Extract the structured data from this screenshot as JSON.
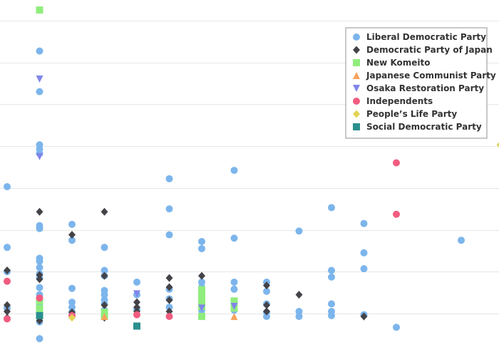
{
  "chart_data": {
    "type": "scatter",
    "title": "",
    "xlabel": "",
    "ylabel": "",
    "xlim": [
      0,
      15.5
    ],
    "ylim": [
      -0.5,
      7.5
    ],
    "gridlines_y": [
      0,
      1,
      2,
      3,
      4,
      5,
      6,
      7
    ],
    "legend_position": "top-right",
    "series": [
      {
        "name": "Liberal Democratic Party",
        "marker": "circle",
        "color": "#7cb5ec",
        "points": [
          {
            "x": 0,
            "y": 3.03
          },
          {
            "x": 0,
            "y": 1.58
          },
          {
            "x": 0,
            "y": 1.0
          },
          {
            "x": 0,
            "y": 0.13
          },
          {
            "x": 1,
            "y": 6.27
          },
          {
            "x": 1,
            "y": 5.3
          },
          {
            "x": 1,
            "y": 4.03
          },
          {
            "x": 1,
            "y": 3.93
          },
          {
            "x": 1,
            "y": 3.82
          },
          {
            "x": 1,
            "y": 2.1
          },
          {
            "x": 1,
            "y": 2.03
          },
          {
            "x": 1,
            "y": 1.32
          },
          {
            "x": 1,
            "y": 1.25
          },
          {
            "x": 1,
            "y": 1.1
          },
          {
            "x": 1,
            "y": 0.95
          },
          {
            "x": 1,
            "y": 0.85
          },
          {
            "x": 1,
            "y": 0.62
          },
          {
            "x": 1,
            "y": 0.45
          },
          {
            "x": 1,
            "y": 0.25
          },
          {
            "x": 1,
            "y": 0.1
          },
          {
            "x": 1,
            "y": -0.2
          },
          {
            "x": 1,
            "y": -0.6
          },
          {
            "x": 2,
            "y": 2.13
          },
          {
            "x": 2,
            "y": 1.75
          },
          {
            "x": 2,
            "y": 0.6
          },
          {
            "x": 2,
            "y": 0.27
          },
          {
            "x": 2,
            "y": 0.15
          },
          {
            "x": 2,
            "y": 0.03
          },
          {
            "x": 3,
            "y": 1.58
          },
          {
            "x": 3,
            "y": 1.03
          },
          {
            "x": 3,
            "y": 0.9
          },
          {
            "x": 3,
            "y": 0.55
          },
          {
            "x": 3,
            "y": 0.45
          },
          {
            "x": 3,
            "y": 0.33
          },
          {
            "x": 3,
            "y": 0.23
          },
          {
            "x": 3,
            "y": 0.08
          },
          {
            "x": 4,
            "y": 0.75
          },
          {
            "x": 4,
            "y": 0.45
          },
          {
            "x": 4,
            "y": 0.1
          },
          {
            "x": 5,
            "y": 3.22
          },
          {
            "x": 5,
            "y": 2.5
          },
          {
            "x": 5,
            "y": 1.88
          },
          {
            "x": 5,
            "y": 0.58
          },
          {
            "x": 5,
            "y": 0.35
          },
          {
            "x": 5,
            "y": 0.15
          },
          {
            "x": 6,
            "y": 1.72
          },
          {
            "x": 6,
            "y": 1.55
          },
          {
            "x": 6,
            "y": 0.75
          },
          {
            "x": 6,
            "y": 0.63
          },
          {
            "x": 6,
            "y": 0.27
          },
          {
            "x": 6,
            "y": 0.08
          },
          {
            "x": 6,
            "y": -0.03
          },
          {
            "x": 7,
            "y": 3.42
          },
          {
            "x": 7,
            "y": 1.8
          },
          {
            "x": 7,
            "y": 0.75
          },
          {
            "x": 7,
            "y": 0.58
          },
          {
            "x": 7,
            "y": 0.27
          },
          {
            "x": 7,
            "y": 0.08
          },
          {
            "x": 8,
            "y": 0.75
          },
          {
            "x": 8,
            "y": 0.53
          },
          {
            "x": 8,
            "y": 0.23
          },
          {
            "x": 8,
            "y": 0.03
          },
          {
            "x": 8,
            "y": -0.07
          },
          {
            "x": 9,
            "y": 1.97
          },
          {
            "x": 9,
            "y": 0.05
          },
          {
            "x": 9,
            "y": -0.07
          },
          {
            "x": 10,
            "y": 2.53
          },
          {
            "x": 10,
            "y": 1.03
          },
          {
            "x": 10,
            "y": 0.87
          },
          {
            "x": 10,
            "y": 0.23
          },
          {
            "x": 10,
            "y": 0.05
          },
          {
            "x": 10,
            "y": -0.05
          },
          {
            "x": 11,
            "y": 2.15
          },
          {
            "x": 11,
            "y": 1.45
          },
          {
            "x": 11,
            "y": 1.07
          },
          {
            "x": 11,
            "y": -0.03
          },
          {
            "x": 12,
            "y": -0.33
          },
          {
            "x": 14,
            "y": 1.75
          }
        ]
      },
      {
        "name": "Democratic Party of Japan",
        "marker": "diamond",
        "color": "#434348",
        "points": [
          {
            "x": 0,
            "y": 1.03
          },
          {
            "x": 0,
            "y": 0.2
          },
          {
            "x": 0,
            "y": 0.05
          },
          {
            "x": 0,
            "y": -0.1
          },
          {
            "x": 1,
            "y": 2.43
          },
          {
            "x": 1,
            "y": 0.92
          },
          {
            "x": 1,
            "y": 0.82
          },
          {
            "x": 1,
            "y": -0.17
          },
          {
            "x": 2,
            "y": 1.88
          },
          {
            "x": 2,
            "y": 0.03
          },
          {
            "x": 3,
            "y": 2.43
          },
          {
            "x": 3,
            "y": 0.9
          },
          {
            "x": 3,
            "y": 0.2
          },
          {
            "x": 3,
            "y": -0.1
          },
          {
            "x": 4,
            "y": 0.27
          },
          {
            "x": 4,
            "y": 0.15
          },
          {
            "x": 4,
            "y": 0.05
          },
          {
            "x": 5,
            "y": 0.85
          },
          {
            "x": 5,
            "y": 0.63
          },
          {
            "x": 5,
            "y": 0.32
          },
          {
            "x": 5,
            "y": 0.05
          },
          {
            "x": 6,
            "y": 0.9
          },
          {
            "x": 8,
            "y": 0.67
          },
          {
            "x": 8,
            "y": 0.2
          },
          {
            "x": 8,
            "y": 0.05
          },
          {
            "x": 9,
            "y": 0.45
          },
          {
            "x": 11,
            "y": -0.07
          }
        ]
      },
      {
        "name": "New Komeito",
        "marker": "square",
        "color": "#90ed7d",
        "points": [
          {
            "x": 1,
            "y": 7.25
          },
          {
            "x": 1,
            "y": 0.3
          },
          {
            "x": 1,
            "y": 0.12
          },
          {
            "x": 3,
            "y": 0.03
          },
          {
            "x": 3,
            "y": -0.07
          },
          {
            "x": 6,
            "y": 0.57
          },
          {
            "x": 6,
            "y": 0.47
          },
          {
            "x": 6,
            "y": 0.32
          },
          {
            "x": 6,
            "y": 0.17
          },
          {
            "x": 6,
            "y": -0.07
          },
          {
            "x": 7,
            "y": 0.3
          },
          {
            "x": 7,
            "y": 0.13
          }
        ]
      },
      {
        "name": "Japanese Communist Party",
        "marker": "triangle",
        "color": "#f7a35c",
        "points": [
          {
            "x": 3,
            "y": -0.07
          },
          {
            "x": 7,
            "y": -0.07
          }
        ]
      },
      {
        "name": "Osaka Restoration Party",
        "marker": "triangle-down",
        "color": "#8085e9",
        "points": [
          {
            "x": 1,
            "y": 5.6
          },
          {
            "x": 1,
            "y": 3.75
          },
          {
            "x": 4,
            "y": 0.47
          },
          {
            "x": 6,
            "y": 0.13
          },
          {
            "x": 7,
            "y": 0.17
          }
        ]
      },
      {
        "name": "Independents",
        "marker": "circle",
        "color": "#f15c80",
        "points": [
          {
            "x": 0,
            "y": 0.77
          },
          {
            "x": 0,
            "y": -0.13
          },
          {
            "x": 1,
            "y": 0.37
          },
          {
            "x": 2,
            "y": -0.05
          },
          {
            "x": 4,
            "y": -0.03
          },
          {
            "x": 5,
            "y": -0.07
          },
          {
            "x": 12,
            "y": 3.6
          },
          {
            "x": 12,
            "y": 2.37
          }
        ]
      },
      {
        "name": "People's Life Party",
        "marker": "diamond",
        "color": "#e4d354",
        "points": [
          {
            "x": 2,
            "y": -0.1
          },
          {
            "x": 15.2,
            "y": 4.03
          }
        ]
      },
      {
        "name": "Social Democratic Party",
        "marker": "square",
        "color": "#2b908f",
        "points": [
          {
            "x": 1,
            "y": -0.05
          },
          {
            "x": 4,
            "y": -0.3
          }
        ]
      }
    ]
  },
  "legend": {
    "items": [
      {
        "label": "Liberal Democratic Party",
        "marker": "circle",
        "color": "#7cb5ec"
      },
      {
        "label": "Democratic Party of Japan",
        "marker": "diamond",
        "color": "#434348"
      },
      {
        "label": "New Komeito",
        "marker": "square",
        "color": "#90ed7d"
      },
      {
        "label": "Japanese Communist Party",
        "marker": "triangle",
        "color": "#f7a35c"
      },
      {
        "label": "Osaka Restoration Party",
        "marker": "triangle-down",
        "color": "#8085e9"
      },
      {
        "label": "Independents",
        "marker": "circle",
        "color": "#f15c80"
      },
      {
        "label": "People’s Life Party",
        "marker": "diamond",
        "color": "#e4d354"
      },
      {
        "label": "Social Democratic Party",
        "marker": "square",
        "color": "#2b908f"
      }
    ]
  },
  "colors": {
    "grid": "#e6e6e6",
    "legend_border": "#909090",
    "legend_text": "#333333",
    "background": "#ffffff"
  }
}
